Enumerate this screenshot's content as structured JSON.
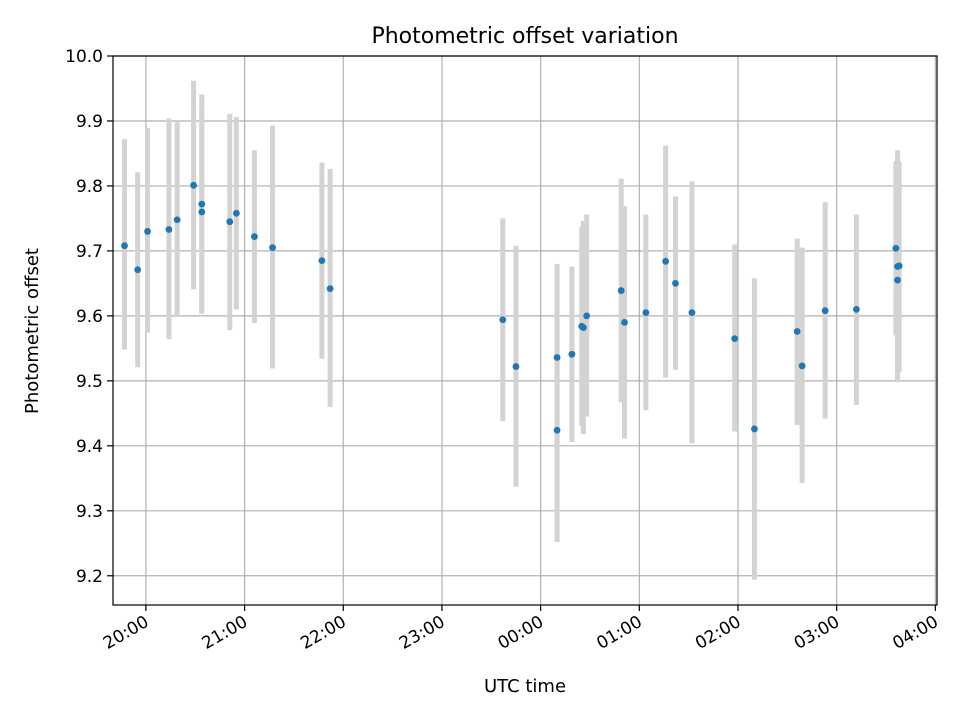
{
  "chart_data": {
    "type": "scatter",
    "title": "Photometric offset variation",
    "xlabel": "UTC time",
    "ylabel": "Photometric offset",
    "grid": true,
    "x_unit": "UTC time (HH:MM, spanning midnight)",
    "xlim": [
      "19:40",
      "04:01"
    ],
    "ylim": [
      9.155,
      10.0
    ],
    "x_ticks": [
      "20:00",
      "21:00",
      "22:00",
      "23:00",
      "00:00",
      "01:00",
      "02:00",
      "03:00",
      "04:00"
    ],
    "y_ticks": [
      "9.2",
      "9.3",
      "9.4",
      "9.5",
      "9.6",
      "9.7",
      "9.8",
      "9.9",
      "10.0"
    ],
    "colors": {
      "points": "#1f77b4",
      "error_bars": "#d3d3d3",
      "grid": "#b0b0b0"
    },
    "series": [
      {
        "points": [
          {
            "x": "19:47",
            "y": 9.708,
            "err_low": 9.548,
            "err_high": 9.872
          },
          {
            "x": "19:55",
            "y": 9.671,
            "err_low": 9.521,
            "err_high": 9.821
          },
          {
            "x": "20:01",
            "y": 9.73,
            "err_low": 9.574,
            "err_high": 9.889
          },
          {
            "x": "20:14",
            "y": 9.733,
            "err_low": 9.564,
            "err_high": 9.904
          },
          {
            "x": "20:19",
            "y": 9.748,
            "err_low": 9.598,
            "err_high": 9.898
          },
          {
            "x": "20:29",
            "y": 9.801,
            "err_low": 9.641,
            "err_high": 9.962
          },
          {
            "x": "20:34",
            "y": 9.772,
            "err_low": 9.603,
            "err_high": 9.941
          },
          {
            "x": "20:34",
            "y": 9.76,
            "err_low": 9.605,
            "err_high": 9.915
          },
          {
            "x": "20:51",
            "y": 9.745,
            "err_low": 9.578,
            "err_high": 9.911
          },
          {
            "x": "20:55",
            "y": 9.758,
            "err_low": 9.61,
            "err_high": 9.906
          },
          {
            "x": "21:06",
            "y": 9.722,
            "err_low": 9.589,
            "err_high": 9.855
          },
          {
            "x": "21:17",
            "y": 9.705,
            "err_low": 9.519,
            "err_high": 9.893
          },
          {
            "x": "21:47",
            "y": 9.685,
            "err_low": 9.534,
            "err_high": 9.836
          },
          {
            "x": "21:52",
            "y": 9.642,
            "err_low": 9.46,
            "err_high": 9.826
          },
          {
            "x": "23:37",
            "y": 9.594,
            "err_low": 9.438,
            "err_high": 9.75
          },
          {
            "x": "23:45",
            "y": 9.522,
            "err_low": 9.337,
            "err_high": 9.708
          },
          {
            "x": "00:10",
            "y": 9.536,
            "err_low": 9.392,
            "err_high": 9.68
          },
          {
            "x": "00:10",
            "y": 9.424,
            "err_low": 9.252,
            "err_high": 9.6
          },
          {
            "x": "00:19",
            "y": 9.541,
            "err_low": 9.406,
            "err_high": 9.676
          },
          {
            "x": "00:25",
            "y": 9.584,
            "err_low": 9.431,
            "err_high": 9.737
          },
          {
            "x": "00:26",
            "y": 9.582,
            "err_low": 9.418,
            "err_high": 9.746
          },
          {
            "x": "00:28",
            "y": 9.6,
            "err_low": 9.445,
            "err_high": 9.756
          },
          {
            "x": "00:49",
            "y": 9.639,
            "err_low": 9.467,
            "err_high": 9.811
          },
          {
            "x": "00:51",
            "y": 9.59,
            "err_low": 9.411,
            "err_high": 9.769
          },
          {
            "x": "01:04",
            "y": 9.605,
            "err_low": 9.455,
            "err_high": 9.756
          },
          {
            "x": "01:16",
            "y": 9.684,
            "err_low": 9.505,
            "err_high": 9.862
          },
          {
            "x": "01:22",
            "y": 9.65,
            "err_low": 9.517,
            "err_high": 9.784
          },
          {
            "x": "01:32",
            "y": 9.605,
            "err_low": 9.404,
            "err_high": 9.807
          },
          {
            "x": "01:58",
            "y": 9.565,
            "err_low": 9.422,
            "err_high": 9.71
          },
          {
            "x": "02:10",
            "y": 9.426,
            "err_low": 9.194,
            "err_high": 9.658
          },
          {
            "x": "02:36",
            "y": 9.576,
            "err_low": 9.432,
            "err_high": 9.719
          },
          {
            "x": "02:39",
            "y": 9.523,
            "err_low": 9.343,
            "err_high": 9.705
          },
          {
            "x": "02:53",
            "y": 9.608,
            "err_low": 9.442,
            "err_high": 9.775
          },
          {
            "x": "03:12",
            "y": 9.61,
            "err_low": 9.463,
            "err_high": 9.756
          },
          {
            "x": "03:36",
            "y": 9.704,
            "err_low": 9.57,
            "err_high": 9.838
          },
          {
            "x": "03:37",
            "y": 9.676,
            "err_low": 9.498,
            "err_high": 9.855
          },
          {
            "x": "03:37",
            "y": 9.655,
            "err_low": 9.504,
            "err_high": 9.807
          },
          {
            "x": "03:38",
            "y": 9.677,
            "err_low": 9.513,
            "err_high": 9.838
          }
        ]
      }
    ]
  }
}
